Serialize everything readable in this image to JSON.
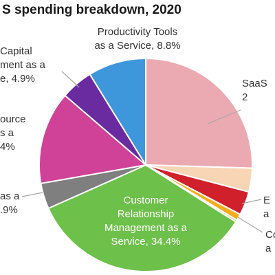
{
  "chart_data": {
    "type": "pie",
    "title": "S spending breakdown, 2020",
    "slices": [
      {
        "label_lines": [
          "SaaS",
          "2"
        ],
        "value": 25.5,
        "color": "#ebaab2"
      },
      {
        "label_lines": [],
        "value": 3.6,
        "color": "#f7d5b5"
      },
      {
        "label_lines": [
          "E",
          "a"
        ],
        "value": 3.6,
        "color": "#d0202c"
      },
      {
        "label_lines": [],
        "value": 1.0,
        "color": "#f6ad1c"
      },
      {
        "label_lines": [
          "Co",
          "a"
        ],
        "value": 0.3,
        "color": "#cfd65a"
      },
      {
        "label_lines": [
          "Customer",
          "Relationship",
          "Management as a",
          "Service, 34.4%"
        ],
        "value": 34.4,
        "color": "#6dc04a"
      },
      {
        "label_lines": [
          "as a",
          ".9%"
        ],
        "value": 3.9,
        "color": "#7f7f7f"
      },
      {
        "label_lines": [
          "ource",
          "s a",
          "4%"
        ],
        "value": 14.1,
        "color": "#cf4298"
      },
      {
        "label_lines": [
          "Capital",
          "ment as a",
          "e, 4.9%"
        ],
        "value": 4.9,
        "color": "#6a2aa0"
      },
      {
        "label_lines": [
          "Productivity Tools",
          "as a Service, 8.8%"
        ],
        "value": 8.8,
        "color": "#3e97db"
      }
    ]
  }
}
